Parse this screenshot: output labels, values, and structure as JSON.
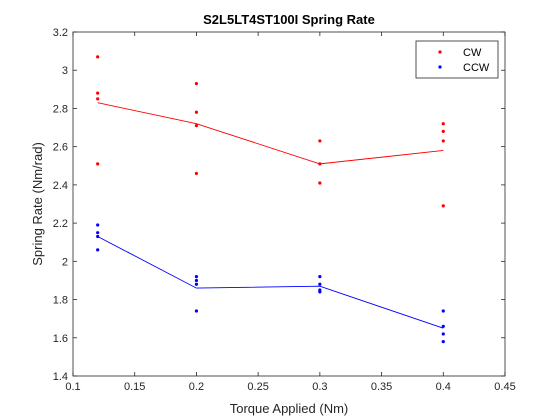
{
  "chart_data": {
    "type": "scatter",
    "title": "S2L5LT4ST100I Spring Rate",
    "xlabel": "Torque Applied (Nm)",
    "ylabel": "Spring Rate (Nm/rad)",
    "xlim": [
      0.1,
      0.45
    ],
    "ylim": [
      1.4,
      3.2
    ],
    "xticks": [
      "0.1",
      "0.15",
      "0.2",
      "0.25",
      "0.3",
      "0.35",
      "0.4",
      "0.45"
    ],
    "yticks": [
      "1.4",
      "1.6",
      "1.8",
      "2",
      "2.2",
      "2.4",
      "2.6",
      "2.8",
      "3",
      "3.2"
    ],
    "grid": false,
    "legend_position": "top-right",
    "series": [
      {
        "name": "CW",
        "color": "#ff0000",
        "points": [
          [
            0.12,
            3.07
          ],
          [
            0.12,
            2.88
          ],
          [
            0.12,
            2.85
          ],
          [
            0.12,
            2.51
          ],
          [
            0.2,
            2.93
          ],
          [
            0.2,
            2.78
          ],
          [
            0.2,
            2.71
          ],
          [
            0.2,
            2.46
          ],
          [
            0.3,
            2.63
          ],
          [
            0.3,
            2.51
          ],
          [
            0.3,
            2.41
          ],
          [
            0.4,
            2.72
          ],
          [
            0.4,
            2.68
          ],
          [
            0.4,
            2.63
          ],
          [
            0.4,
            2.29
          ]
        ],
        "mean_line": [
          [
            0.12,
            2.83
          ],
          [
            0.2,
            2.72
          ],
          [
            0.3,
            2.51
          ],
          [
            0.4,
            2.58
          ]
        ]
      },
      {
        "name": "CCW",
        "color": "#0000ff",
        "points": [
          [
            0.12,
            2.19
          ],
          [
            0.12,
            2.15
          ],
          [
            0.12,
            2.13
          ],
          [
            0.12,
            2.06
          ],
          [
            0.2,
            1.92
          ],
          [
            0.2,
            1.9
          ],
          [
            0.2,
            1.88
          ],
          [
            0.2,
            1.74
          ],
          [
            0.3,
            1.92
          ],
          [
            0.3,
            1.88
          ],
          [
            0.3,
            1.85
          ],
          [
            0.3,
            1.84
          ],
          [
            0.4,
            1.74
          ],
          [
            0.4,
            1.66
          ],
          [
            0.4,
            1.62
          ],
          [
            0.4,
            1.58
          ]
        ],
        "mean_line": [
          [
            0.12,
            2.13
          ],
          [
            0.2,
            1.86
          ],
          [
            0.3,
            1.87
          ],
          [
            0.4,
            1.65
          ]
        ]
      }
    ]
  }
}
